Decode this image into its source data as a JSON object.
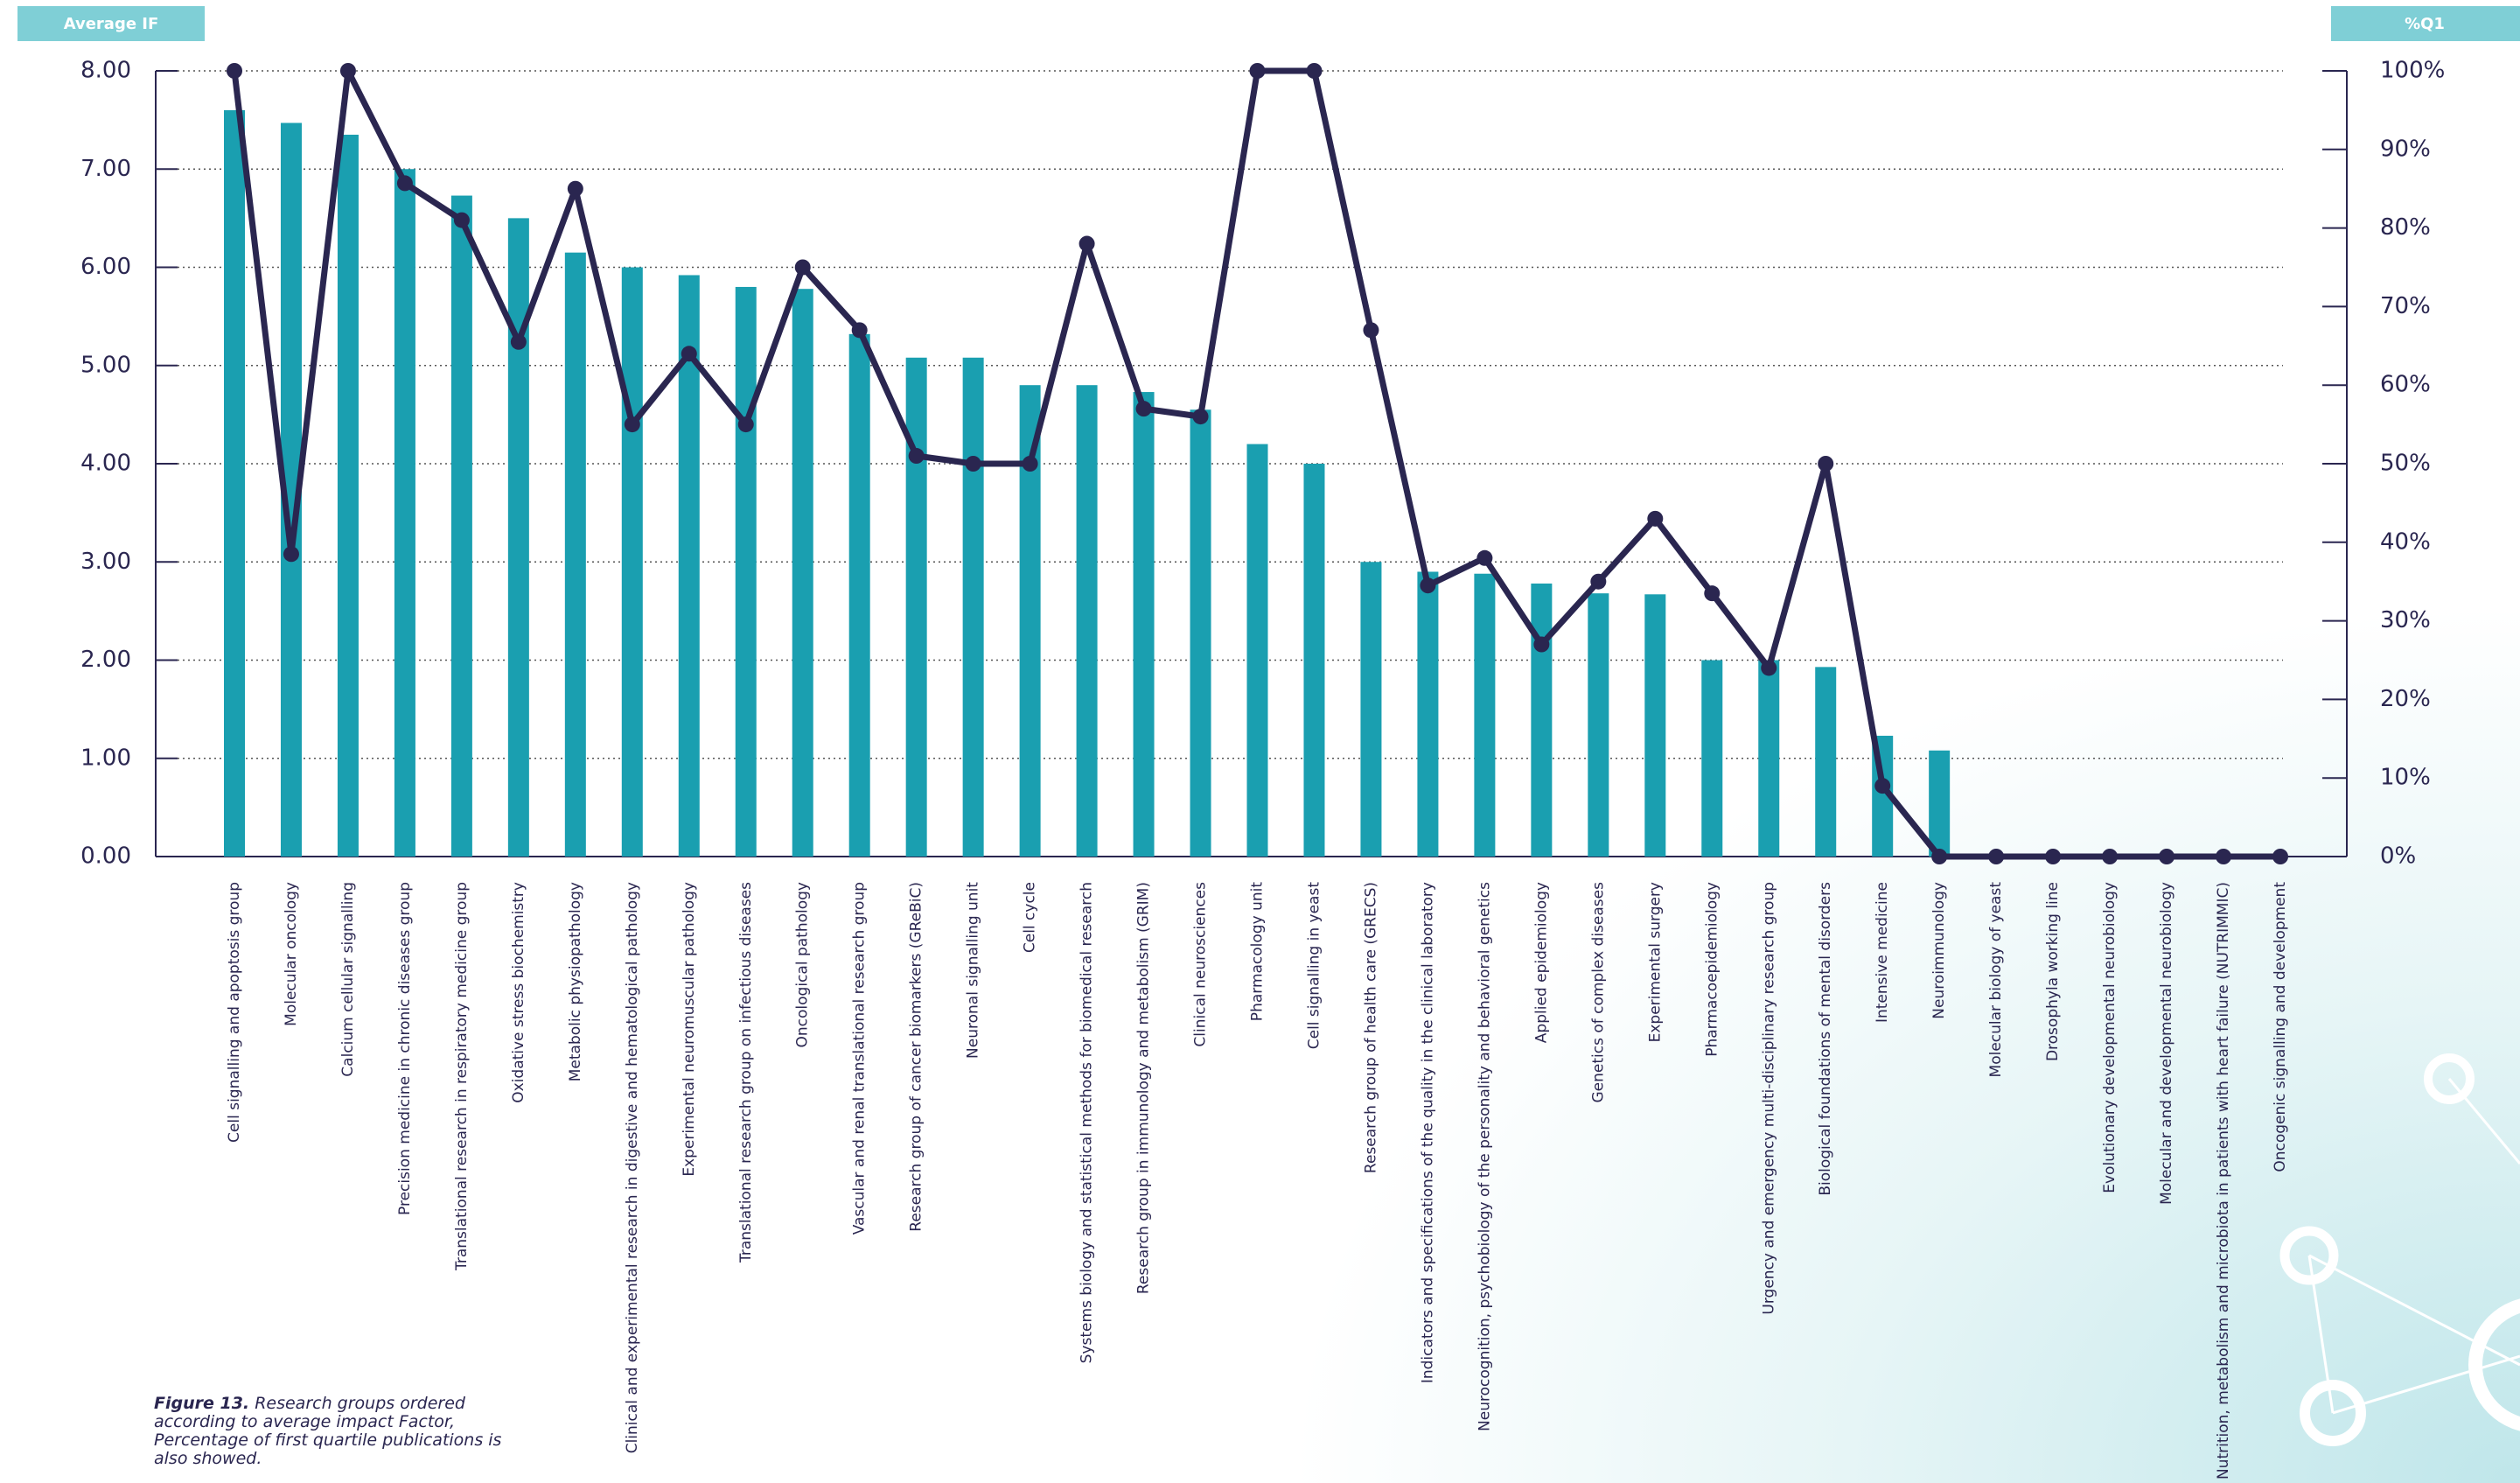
{
  "chart_data": {
    "type": "bar-line",
    "y_label": "Average IF",
    "y2_label": "%Q1",
    "categories": [
      "Cell signalling and apoptosis group",
      "Molecular oncology",
      "Calcium cellular signalling",
      "Precision medicine in chronic diseases group",
      "Translational research in respiratory medicine group",
      "Oxidative stress biochemistry",
      "Metabolic physiopathology",
      "Clinical and experimental research in digestive and hematological pathology",
      "Experimental neuromuscular pathology",
      "Translational research group on infectious diseases",
      "Oncological pathology",
      "Vascular and renal translational research group",
      "Research group of cancer biomarkers (GReBiC)",
      "Neuronal signalling unit",
      "Cell cycle",
      "Systems biology and statistical methods for biomedical research",
      "Research group in immunology and metabolism (GRIM)",
      "Clinical neurosciences",
      "Pharmacology unit",
      "Cell signalling in yeast",
      "Research group of health care (GRECS)",
      "Indicators and specifications of the quality in the clinical laboratory",
      "Neurocognition, psychobiology of the personality and behavioral genetics",
      "Applied epidemiology",
      "Genetics of complex diseases",
      "Experimental surgery",
      "Pharmacoepidemiology",
      "Urgency and emergency multi-disciplinary research group",
      "Biological foundations of mental disorders",
      "Intensive medicine",
      "Neuroimmunology",
      "Molecular biology of yeast",
      "Drosophyla working line",
      "Evolutionary developmental neurobiology",
      "Molecular and developmental neurobiology",
      "Nutrition, metabolism and microbiota in patients with heart failure (NUTRIMMIC)",
      "Oncogenic signalling and development"
    ],
    "series": [
      {
        "name": "Average IF",
        "kind": "bar",
        "color": "#1a9fb0",
        "values": [
          7.6,
          7.47,
          7.35,
          7.0,
          6.73,
          6.5,
          6.15,
          6.0,
          5.92,
          5.8,
          5.78,
          5.32,
          5.08,
          5.08,
          4.8,
          4.8,
          4.73,
          4.55,
          4.2,
          4.0,
          3.0,
          2.9,
          2.88,
          2.78,
          2.68,
          2.67,
          2.0,
          2.0,
          1.93,
          1.23,
          1.08,
          0,
          0,
          0,
          0,
          0,
          0
        ]
      },
      {
        "name": "%Q1",
        "kind": "line",
        "axis": "y2",
        "color": "#2a2650",
        "values": [
          100,
          38.5,
          100,
          85.7,
          81,
          65.5,
          85,
          55,
          64,
          55,
          75,
          67,
          51,
          50,
          50,
          78,
          57,
          56,
          100,
          100,
          67,
          34.5,
          38,
          27,
          35,
          43,
          33.5,
          24,
          50,
          9,
          0,
          0,
          0,
          0,
          0,
          0,
          0
        ]
      }
    ],
    "ylim": [
      0,
      8
    ],
    "yticks": [
      {
        "value": 0,
        "label": "0.00"
      },
      {
        "value": 1,
        "label": "1.00"
      },
      {
        "value": 2,
        "label": "2.00"
      },
      {
        "value": 3,
        "label": "3.00"
      },
      {
        "value": 4,
        "label": "4.00"
      },
      {
        "value": 5,
        "label": "5.00"
      },
      {
        "value": 6,
        "label": "6.00"
      },
      {
        "value": 7,
        "label": "7.00"
      },
      {
        "value": 8,
        "label": "8.00"
      }
    ],
    "y2lim": [
      0,
      100
    ],
    "y2ticks": [
      {
        "value": 0,
        "label": "0%"
      },
      {
        "value": 10,
        "label": "10%"
      },
      {
        "value": 20,
        "label": "20%"
      },
      {
        "value": 30,
        "label": "30%"
      },
      {
        "value": 40,
        "label": "40%"
      },
      {
        "value": 50,
        "label": "50%"
      },
      {
        "value": 60,
        "label": "60%"
      },
      {
        "value": 70,
        "label": "70%"
      },
      {
        "value": 80,
        "label": "80%"
      },
      {
        "value": 90,
        "label": "90%"
      },
      {
        "value": 100,
        "label": "100%"
      }
    ],
    "grid": true,
    "caption": {
      "label": "Figure 13.",
      "text": "Research groups ordered according to average impact Factor, Percentage of first quartile publications is also showed."
    }
  }
}
